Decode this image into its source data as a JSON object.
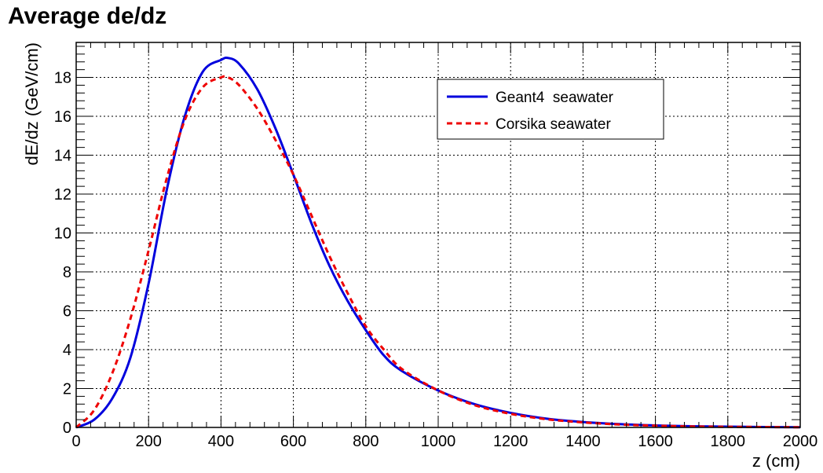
{
  "chart_data": {
    "type": "line",
    "title": "Average de/dz",
    "xlabel": "z (cm)",
    "ylabel": "dE/dz (GeV/cm)",
    "xlim": [
      0,
      2000
    ],
    "ylim": [
      0,
      19.8
    ],
    "x_ticks": [
      "0",
      "200",
      "400",
      "600",
      "800",
      "1000",
      "1200",
      "1400",
      "1600",
      "1800",
      "2000"
    ],
    "y_ticks": [
      "0",
      "2",
      "4",
      "6",
      "8",
      "10",
      "12",
      "14",
      "16",
      "18"
    ],
    "grid": true,
    "legend_position": "top-right",
    "series": [
      {
        "name": "Geant4  seawater",
        "color": "#0000dd",
        "style": "solid",
        "x": [
          0,
          50,
          100,
          150,
          200,
          250,
          300,
          350,
          400,
          420,
          450,
          500,
          550,
          600,
          650,
          700,
          750,
          800,
          850,
          900,
          1000,
          1100,
          1200,
          1300,
          1400,
          1500,
          1600,
          1700,
          1800,
          1900,
          2000
        ],
        "y": [
          0,
          0.4,
          1.5,
          3.6,
          7.4,
          12.2,
          16.0,
          18.3,
          18.9,
          19.0,
          18.7,
          17.4,
          15.4,
          13.0,
          10.5,
          8.3,
          6.5,
          5.0,
          3.7,
          2.9,
          1.9,
          1.2,
          0.75,
          0.45,
          0.28,
          0.17,
          0.1,
          0.06,
          0.04,
          0.02,
          0.01
        ]
      },
      {
        "name": "Corsika seawater",
        "color": "#ee0000",
        "style": "dashed",
        "x": [
          0,
          50,
          100,
          150,
          200,
          250,
          300,
          350,
          400,
          420,
          450,
          500,
          550,
          600,
          650,
          700,
          750,
          800,
          850,
          900,
          1000,
          1100,
          1200,
          1300,
          1400,
          1500,
          1600,
          1700,
          1800,
          1900,
          2000
        ],
        "y": [
          0,
          0.9,
          2.8,
          5.6,
          9.1,
          12.8,
          15.8,
          17.5,
          18.0,
          18.0,
          17.6,
          16.4,
          14.8,
          13.0,
          10.9,
          8.8,
          6.9,
          5.2,
          4.0,
          3.0,
          1.9,
          1.15,
          0.7,
          0.42,
          0.26,
          0.15,
          0.09,
          0.05,
          0.03,
          0.02,
          0.01
        ]
      }
    ]
  }
}
